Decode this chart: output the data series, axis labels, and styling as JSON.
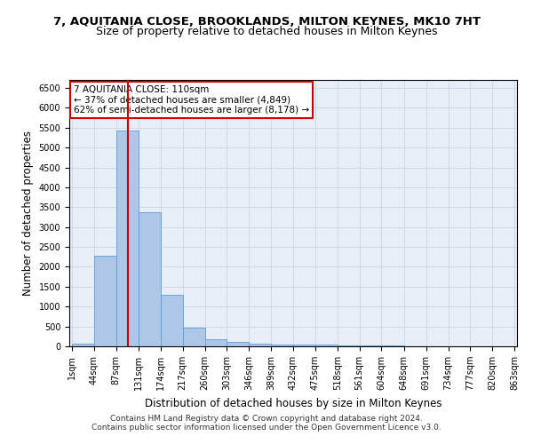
{
  "title1": "7, AQUITANIA CLOSE, BROOKLANDS, MILTON KEYNES, MK10 7HT",
  "title2": "Size of property relative to detached houses in Milton Keynes",
  "xlabel": "Distribution of detached houses by size in Milton Keynes",
  "ylabel": "Number of detached properties",
  "footer1": "Contains HM Land Registry data © Crown copyright and database right 2024.",
  "footer2": "Contains public sector information licensed under the Open Government Licence v3.0.",
  "annotation_title": "7 AQUITANIA CLOSE: 110sqm",
  "annotation_line1": "← 37% of detached houses are smaller (4,849)",
  "annotation_line2": "62% of semi-detached houses are larger (8,178) →",
  "bar_edges": [
    1,
    44,
    87,
    131,
    174,
    217,
    260,
    303,
    346,
    389,
    432,
    475,
    518,
    561,
    604,
    648,
    691,
    734,
    777,
    820,
    863
  ],
  "bar_heights": [
    75,
    2270,
    5430,
    3370,
    1290,
    480,
    170,
    105,
    75,
    55,
    45,
    35,
    30,
    20,
    15,
    10,
    8,
    5,
    3,
    2
  ],
  "bar_color": "#aec6e8",
  "bar_edgecolor": "#5a9fd4",
  "red_line_x": 110,
  "ylim": [
    0,
    6700
  ],
  "yticks": [
    0,
    500,
    1000,
    1500,
    2000,
    2500,
    3000,
    3500,
    4000,
    4500,
    5000,
    5500,
    6000,
    6500
  ],
  "xtick_labels": [
    "1sqm",
    "44sqm",
    "87sqm",
    "131sqm",
    "174sqm",
    "217sqm",
    "260sqm",
    "303sqm",
    "346sqm",
    "389sqm",
    "432sqm",
    "475sqm",
    "518sqm",
    "561sqm",
    "604sqm",
    "648sqm",
    "691sqm",
    "734sqm",
    "777sqm",
    "820sqm",
    "863sqm"
  ],
  "grid_color": "#d0d8e8",
  "background_color": "#e8eef8",
  "annotation_box_facecolor": "#ffffff",
  "annotation_box_edgecolor": "#cc0000",
  "title_fontsize": 9.5,
  "subtitle_fontsize": 9,
  "axis_label_fontsize": 8.5,
  "tick_fontsize": 7,
  "annotation_fontsize": 7.5,
  "footer_fontsize": 6.5
}
